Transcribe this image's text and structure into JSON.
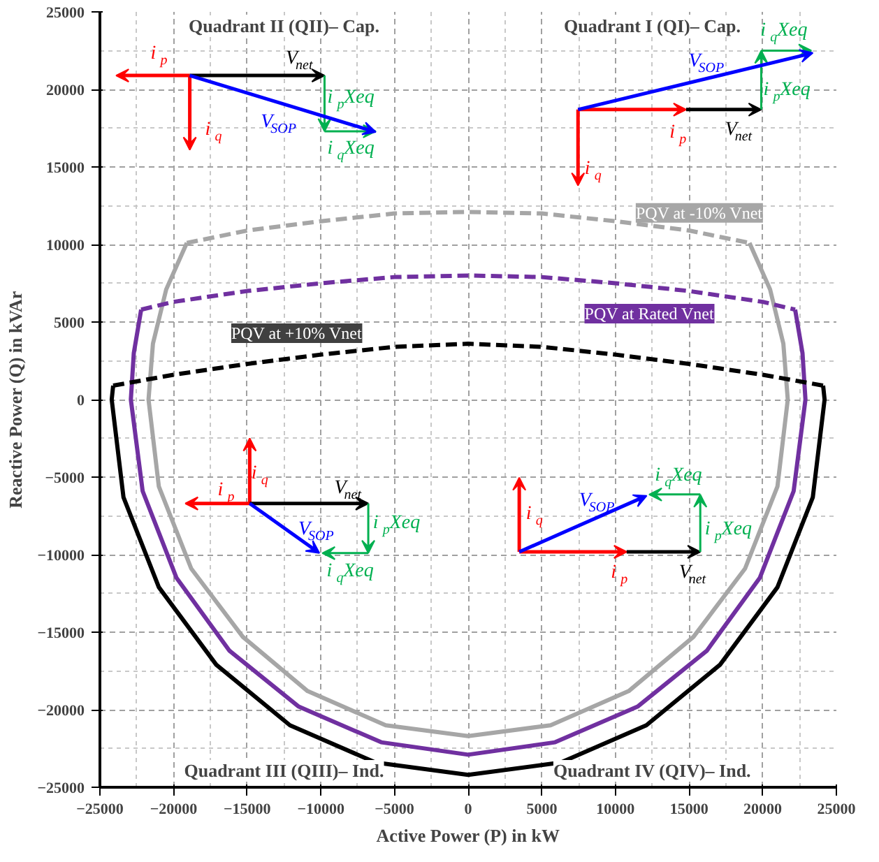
{
  "chart_data": {
    "type": "line",
    "xlabel": "Active Power (P) in kW",
    "ylabel": "Reactive Power (Q) in kVAr",
    "xlim": [
      -25000,
      25000
    ],
    "ylim": [
      -25000,
      25000
    ],
    "xticks": [
      -25000,
      -20000,
      -15000,
      -10000,
      -5000,
      0,
      5000,
      10000,
      15000,
      20000,
      25000
    ],
    "yticks": [
      -25000,
      -20000,
      -15000,
      -10000,
      -5000,
      0,
      5000,
      10000,
      15000,
      20000,
      25000
    ],
    "grid": true,
    "series": [
      {
        "color": "#a6a6a6",
        "line_style": "dashed",
        "x": [
          -19100,
          -15000,
          -10000,
          -5000,
          0,
          5000,
          10000,
          15000,
          19100
        ],
        "values": [
          10100,
          10900,
          11500,
          12000,
          12100,
          12000,
          11500,
          10900,
          10100
        ]
      },
      {
        "color": "#a6a6a6",
        "line_style": "solid",
        "x": [
          -19100,
          -20500,
          -21400,
          -21700,
          -21000,
          -18800,
          -15300,
          -10900,
          -5600,
          0,
          5600,
          10900,
          15300,
          18800,
          21000,
          21700,
          21400,
          20500,
          19100
        ],
        "values": [
          10100,
          7100,
          3600,
          0,
          -5600,
          -10900,
          -15300,
          -18800,
          -21000,
          -21700,
          -21000,
          -18800,
          -15300,
          -10900,
          -5600,
          0,
          3600,
          7100,
          10100
        ]
      },
      {
        "color": "#7030a0",
        "line_style": "dashed",
        "x": [
          -22200,
          -20000,
          -15000,
          -10000,
          -5000,
          0,
          5000,
          10000,
          15000,
          20000,
          22200
        ],
        "values": [
          5800,
          6300,
          7000,
          7500,
          7900,
          8000,
          7900,
          7500,
          7000,
          6300,
          5800
        ]
      },
      {
        "color": "#7030a0",
        "line_style": "solid",
        "x": [
          -22200,
          -22700,
          -22900,
          -22100,
          -19800,
          -16200,
          -11500,
          -5900,
          0,
          5900,
          11500,
          16200,
          19800,
          22100,
          22900,
          22700,
          22200
        ],
        "values": [
          5800,
          3000,
          0,
          -5900,
          -11500,
          -16200,
          -19800,
          -22100,
          -22900,
          -22100,
          -19800,
          -16200,
          -11500,
          -5900,
          0,
          3000,
          5800
        ]
      },
      {
        "color": "#000000",
        "line_style": "dashed",
        "x": [
          -24100,
          -20000,
          -15000,
          -10000,
          -5000,
          0,
          5000,
          10000,
          15000,
          20000,
          24100
        ],
        "values": [
          900,
          1600,
          2300,
          2900,
          3400,
          3600,
          3400,
          2900,
          2300,
          1600,
          900
        ]
      },
      {
        "color": "#000000",
        "line_style": "solid",
        "x": [
          -24100,
          -24200,
          -23400,
          -21000,
          -17100,
          -12100,
          -6300,
          0,
          6300,
          12100,
          17100,
          21000,
          23400,
          24200,
          24100
        ],
        "values": [
          900,
          0,
          -6300,
          -12100,
          -17100,
          -21000,
          -23400,
          -24200,
          -23400,
          -21000,
          -17100,
          -12100,
          -6300,
          0,
          900
        ]
      }
    ],
    "annotations": [
      "Quadrant II (QII)– Cap.",
      "Quadrant I (QI)– Cap.",
      "Quadrant III (QIII)– Ind.",
      "Quadrant IV (QIV)– Ind.",
      {
        "text": "PQV at -10% Vnet",
        "x": 11000,
        "y": 11500
      },
      {
        "text": "PQV at Rated Vnet",
        "x": 7900,
        "y": 7700
      },
      {
        "text": "PQV at +10% Vnet",
        "x": -7000,
        "y": 3200
      },
      "i$_{p}$",
      "i$_{q}$",
      "V$_{net}$",
      "V$_{SOP}$",
      "i$_{p}$Xeq",
      "i$_{q}$Xeq",
      "i$_{p}$",
      "i$_{q}$",
      "V$_{net}$",
      "V$_{SOP}$",
      "i$_{p}$Xeq",
      "i$_{q}$Xeq",
      "i$_{p}$",
      "i$_{q}$",
      "V$_{net}$",
      "V$_{SOP}$",
      "i$_{p}$Xeq",
      "i$_{q}$Xeq",
      "i$_{p}$",
      "i$_{q}$",
      "V$_{net}$",
      "V$_{SOP}$",
      "i$_{p}$Xeq",
      "i$_{q}$Xeq"
    ]
  }
}
